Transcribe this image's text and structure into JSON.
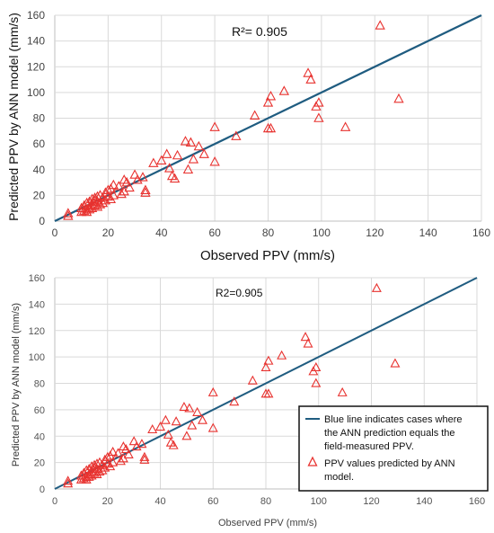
{
  "chart_data": [
    {
      "type": "scatter",
      "xlabel": "Observed PPV (mm/s)",
      "ylabel": "Predicted PPV by ANN model (mm/s)",
      "annotation": "R²= 0.905",
      "xlim": [
        0,
        160
      ],
      "ylim": [
        0,
        160
      ],
      "xticks": [
        "0",
        "20",
        "40",
        "60",
        "80",
        "100",
        "120",
        "140",
        "160"
      ],
      "yticks": [
        "0",
        "20",
        "40",
        "60",
        "80",
        "100",
        "120",
        "140",
        "160"
      ],
      "grid": true,
      "legend": "none",
      "reference_line": {
        "x": [
          0,
          160
        ],
        "y": [
          0,
          160
        ],
        "color": "#1f5c80"
      },
      "marker_color": "#e8322f",
      "x": [
        5,
        5,
        10,
        10,
        11,
        11,
        12,
        12,
        12,
        13,
        13,
        13,
        14,
        14,
        14,
        15,
        15,
        15,
        16,
        16,
        16,
        17,
        17,
        18,
        18,
        19,
        19,
        20,
        20,
        21,
        21,
        22,
        22,
        24,
        25,
        26,
        26,
        27,
        28,
        30,
        31,
        33,
        34,
        34,
        37,
        40,
        42,
        43,
        44,
        45,
        46,
        49,
        50,
        51,
        52,
        54,
        56,
        60,
        60,
        68,
        75,
        80,
        80,
        81,
        81,
        86,
        95,
        96,
        98,
        99,
        99,
        109,
        122,
        129
      ],
      "y": [
        6,
        4,
        10,
        7,
        12,
        8,
        14,
        9,
        7,
        15,
        11,
        9,
        17,
        13,
        10,
        16,
        18,
        12,
        19,
        15,
        11,
        20,
        13,
        18,
        14,
        22,
        16,
        24,
        19,
        25,
        17,
        28,
        20,
        27,
        21,
        32,
        23,
        30,
        26,
        36,
        32,
        34,
        24,
        22,
        45,
        47,
        52,
        41,
        35,
        33,
        51,
        62,
        40,
        61,
        48,
        58,
        52,
        73,
        46,
        66,
        82,
        92,
        72,
        97,
        72,
        101,
        115,
        110,
        89,
        80,
        92,
        73,
        152,
        95
      ]
    },
    {
      "type": "scatter",
      "xlabel": "Observed PPV (mm/s)",
      "ylabel": "Predicted PPV by ANN model (mm/s)",
      "annotation": "R2=0.905",
      "xlim": [
        0,
        160
      ],
      "ylim": [
        0,
        160
      ],
      "xticks": [
        "0",
        "20",
        "40",
        "60",
        "80",
        "100",
        "120",
        "140",
        "160"
      ],
      "yticks": [
        "0",
        "20",
        "40",
        "60",
        "80",
        "100",
        "120",
        "140",
        "160"
      ],
      "grid": true,
      "legend": "bottom-right",
      "reference_line": {
        "x": [
          0,
          160
        ],
        "y": [
          0,
          160
        ],
        "color": "#1f5c80"
      },
      "marker_color": "#e8322f",
      "legend_entries": [
        "Blue line indicates cases where the ANN prediction equals the field-measured PPV.",
        "PPV values predicted by ANN model."
      ],
      "x": [
        5,
        5,
        10,
        10,
        11,
        11,
        12,
        12,
        12,
        13,
        13,
        13,
        14,
        14,
        14,
        15,
        15,
        15,
        16,
        16,
        16,
        17,
        17,
        18,
        18,
        19,
        19,
        20,
        20,
        21,
        21,
        22,
        22,
        24,
        25,
        26,
        26,
        27,
        28,
        30,
        31,
        33,
        34,
        34,
        37,
        40,
        42,
        43,
        44,
        45,
        46,
        49,
        50,
        51,
        52,
        54,
        56,
        60,
        60,
        68,
        75,
        80,
        80,
        81,
        81,
        86,
        95,
        96,
        98,
        99,
        99,
        109,
        122,
        129
      ],
      "y": [
        6,
        4,
        10,
        7,
        12,
        8,
        14,
        9,
        7,
        15,
        11,
        9,
        17,
        13,
        10,
        16,
        18,
        12,
        19,
        15,
        11,
        20,
        13,
        18,
        14,
        22,
        16,
        24,
        19,
        25,
        17,
        28,
        20,
        27,
        21,
        32,
        23,
        30,
        26,
        36,
        32,
        34,
        24,
        22,
        45,
        47,
        52,
        41,
        35,
        33,
        51,
        62,
        40,
        61,
        48,
        58,
        52,
        73,
        46,
        66,
        82,
        92,
        72,
        97,
        72,
        101,
        115,
        110,
        89,
        80,
        92,
        73,
        152,
        95
      ]
    }
  ],
  "legend": {
    "line_lines": [
      "Blue line indicates cases where",
      "the ANN prediction equals the",
      "field-measured PPV."
    ],
    "marker_lines": [
      "PPV values predicted by ANN",
      "model."
    ]
  }
}
